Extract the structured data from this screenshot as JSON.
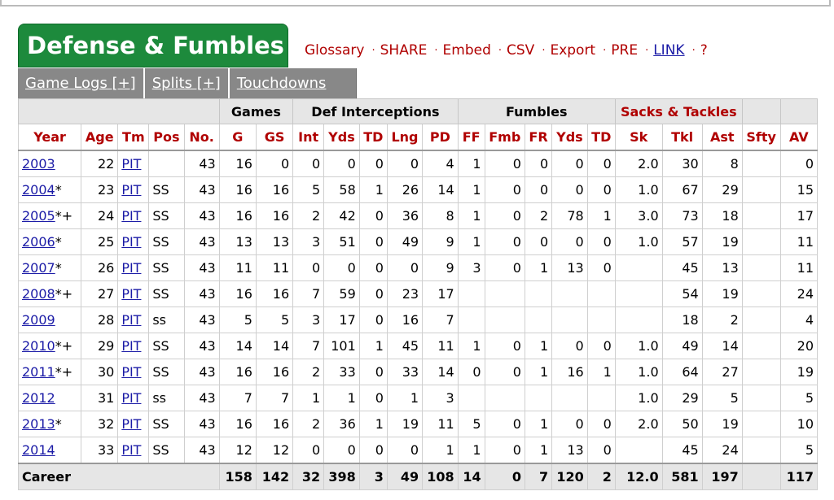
{
  "title": "Defense & Fumbles",
  "links": [
    {
      "label": "Glossary",
      "style": "plain"
    },
    {
      "label": "SHARE",
      "style": "plain"
    },
    {
      "label": "Embed",
      "style": "plain"
    },
    {
      "label": "CSV",
      "style": "plain"
    },
    {
      "label": "Export",
      "style": "plain"
    },
    {
      "label": "PRE",
      "style": "plain"
    },
    {
      "label": "LINK",
      "style": "blue"
    },
    {
      "label": "?",
      "style": "plain"
    }
  ],
  "link_separator": "·",
  "subtabs": [
    "Game Logs [+]",
    "Splits [+]",
    "Touchdowns"
  ],
  "over_headers": [
    {
      "label": "",
      "span": 5
    },
    {
      "label": "Games",
      "span": 2
    },
    {
      "label": "Def Interceptions",
      "span": 5
    },
    {
      "label": "Fumbles",
      "span": 5
    },
    {
      "label": "Sacks & Tackles",
      "span": 3,
      "red": true
    },
    {
      "label": "",
      "span": 1
    },
    {
      "label": "",
      "span": 1
    }
  ],
  "columns": [
    "Year",
    "Age",
    "Tm",
    "Pos",
    "No.",
    "G",
    "GS",
    "Int",
    "Yds",
    "TD",
    "Lng",
    "PD",
    "FF",
    "Fmb",
    "FR",
    "Yds",
    "TD",
    "Sk",
    "Tkl",
    "Ast",
    "Sfty",
    "AV"
  ],
  "rows": [
    {
      "year": "2003",
      "mark": "",
      "age": "22",
      "tm": "PIT",
      "pos": "",
      "no": "43",
      "g": "16",
      "gs": "0",
      "int": "0",
      "iyds": "0",
      "itd": "0",
      "lng": "0",
      "pd": "4",
      "ff": "1",
      "fmb": "0",
      "fr": "0",
      "fyds": "0",
      "ftd": "0",
      "sk": "2.0",
      "tkl": "30",
      "ast": "8",
      "sfty": "",
      "av": "0"
    },
    {
      "year": "2004",
      "mark": "*",
      "age": "23",
      "tm": "PIT",
      "pos": "SS",
      "no": "43",
      "g": "16",
      "gs": "16",
      "int": "5",
      "iyds": "58",
      "itd": "1",
      "lng": "26",
      "pd": "14",
      "ff": "1",
      "fmb": "0",
      "fr": "0",
      "fyds": "0",
      "ftd": "0",
      "sk": "1.0",
      "tkl": "67",
      "ast": "29",
      "sfty": "",
      "av": "15"
    },
    {
      "year": "2005",
      "mark": "*+",
      "age": "24",
      "tm": "PIT",
      "pos": "SS",
      "no": "43",
      "g": "16",
      "gs": "16",
      "int": "2",
      "iyds": "42",
      "itd": "0",
      "lng": "36",
      "pd": "8",
      "ff": "1",
      "fmb": "0",
      "fr": "2",
      "fyds": "78",
      "ftd": "1",
      "sk": "3.0",
      "tkl": "73",
      "ast": "18",
      "sfty": "",
      "av": "17"
    },
    {
      "year": "2006",
      "mark": "*",
      "age": "25",
      "tm": "PIT",
      "pos": "SS",
      "no": "43",
      "g": "13",
      "gs": "13",
      "int": "3",
      "iyds": "51",
      "itd": "0",
      "lng": "49",
      "pd": "9",
      "ff": "1",
      "fmb": "0",
      "fr": "0",
      "fyds": "0",
      "ftd": "0",
      "sk": "1.0",
      "tkl": "57",
      "ast": "19",
      "sfty": "",
      "av": "11"
    },
    {
      "year": "2007",
      "mark": "*",
      "age": "26",
      "tm": "PIT",
      "pos": "SS",
      "no": "43",
      "g": "11",
      "gs": "11",
      "int": "0",
      "iyds": "0",
      "itd": "0",
      "lng": "0",
      "pd": "9",
      "ff": "3",
      "fmb": "0",
      "fr": "1",
      "fyds": "13",
      "ftd": "0",
      "sk": "",
      "tkl": "45",
      "ast": "13",
      "sfty": "",
      "av": "11"
    },
    {
      "year": "2008",
      "mark": "*+",
      "age": "27",
      "tm": "PIT",
      "pos": "SS",
      "no": "43",
      "g": "16",
      "gs": "16",
      "int": "7",
      "iyds": "59",
      "itd": "0",
      "lng": "23",
      "pd": "17",
      "ff": "",
      "fmb": "",
      "fr": "",
      "fyds": "",
      "ftd": "",
      "sk": "",
      "tkl": "54",
      "ast": "19",
      "sfty": "",
      "av": "24"
    },
    {
      "year": "2009",
      "mark": "",
      "age": "28",
      "tm": "PIT",
      "pos": "ss",
      "no": "43",
      "g": "5",
      "gs": "5",
      "int": "3",
      "iyds": "17",
      "itd": "0",
      "lng": "16",
      "pd": "7",
      "ff": "",
      "fmb": "",
      "fr": "",
      "fyds": "",
      "ftd": "",
      "sk": "",
      "tkl": "18",
      "ast": "2",
      "sfty": "",
      "av": "4"
    },
    {
      "year": "2010",
      "mark": "*+",
      "age": "29",
      "tm": "PIT",
      "pos": "SS",
      "no": "43",
      "g": "14",
      "gs": "14",
      "int": "7",
      "iyds": "101",
      "itd": "1",
      "lng": "45",
      "pd": "11",
      "ff": "1",
      "fmb": "0",
      "fr": "1",
      "fyds": "0",
      "ftd": "0",
      "sk": "1.0",
      "tkl": "49",
      "ast": "14",
      "sfty": "",
      "av": "20"
    },
    {
      "year": "2011",
      "mark": "*+",
      "age": "30",
      "tm": "PIT",
      "pos": "SS",
      "no": "43",
      "g": "16",
      "gs": "16",
      "int": "2",
      "iyds": "33",
      "itd": "0",
      "lng": "33",
      "pd": "14",
      "ff": "0",
      "fmb": "0",
      "fr": "1",
      "fyds": "16",
      "ftd": "1",
      "sk": "1.0",
      "tkl": "64",
      "ast": "27",
      "sfty": "",
      "av": "19"
    },
    {
      "year": "2012",
      "mark": "",
      "age": "31",
      "tm": "PIT",
      "pos": "ss",
      "no": "43",
      "g": "7",
      "gs": "7",
      "int": "1",
      "iyds": "1",
      "itd": "0",
      "lng": "1",
      "pd": "3",
      "ff": "",
      "fmb": "",
      "fr": "",
      "fyds": "",
      "ftd": "",
      "sk": "1.0",
      "tkl": "29",
      "ast": "5",
      "sfty": "",
      "av": "5"
    },
    {
      "year": "2013",
      "mark": "*",
      "age": "32",
      "tm": "PIT",
      "pos": "SS",
      "no": "43",
      "g": "16",
      "gs": "16",
      "int": "2",
      "iyds": "36",
      "itd": "1",
      "lng": "19",
      "pd": "11",
      "ff": "5",
      "fmb": "0",
      "fr": "1",
      "fyds": "0",
      "ftd": "0",
      "sk": "2.0",
      "tkl": "50",
      "ast": "19",
      "sfty": "",
      "av": "10"
    },
    {
      "year": "2014",
      "mark": "",
      "age": "33",
      "tm": "PIT",
      "pos": "SS",
      "no": "43",
      "g": "12",
      "gs": "12",
      "int": "0",
      "iyds": "0",
      "itd": "0",
      "lng": "0",
      "pd": "1",
      "ff": "1",
      "fmb": "0",
      "fr": "1",
      "fyds": "13",
      "ftd": "0",
      "sk": "",
      "tkl": "45",
      "ast": "24",
      "sfty": "",
      "av": "5"
    }
  ],
  "career": {
    "label": "Career",
    "g": "158",
    "gs": "142",
    "int": "32",
    "iyds": "398",
    "itd": "3",
    "lng": "49",
    "pd": "108",
    "ff": "14",
    "fmb": "0",
    "fr": "7",
    "fyds": "120",
    "ftd": "2",
    "sk": "12.0",
    "tkl": "581",
    "ast": "197",
    "sfty": "",
    "av": "117"
  },
  "colors": {
    "title_bg": "#1d8a3c",
    "link_red": "#b00000",
    "link_blue": "#1a1aa6",
    "header_bg": "#e6e6e6",
    "subtab_bg": "#888888"
  }
}
